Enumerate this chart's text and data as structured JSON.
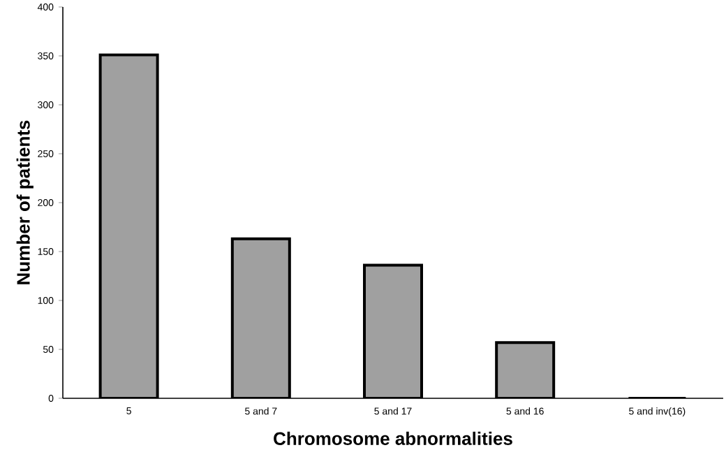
{
  "chart_data": {
    "type": "bar",
    "xlabel": "Chromosome abnormalities",
    "ylabel": "Number of patients",
    "categories": [
      "5",
      "5 and 7",
      "5 and 17",
      "5 and 16",
      "5 and inv(16)"
    ],
    "values": [
      351,
      163,
      136,
      57,
      0
    ],
    "color": "#a0a0a0",
    "ylim": [
      0,
      400
    ],
    "yticks": [
      0,
      50,
      100,
      150,
      200,
      250,
      300,
      350,
      400
    ]
  }
}
